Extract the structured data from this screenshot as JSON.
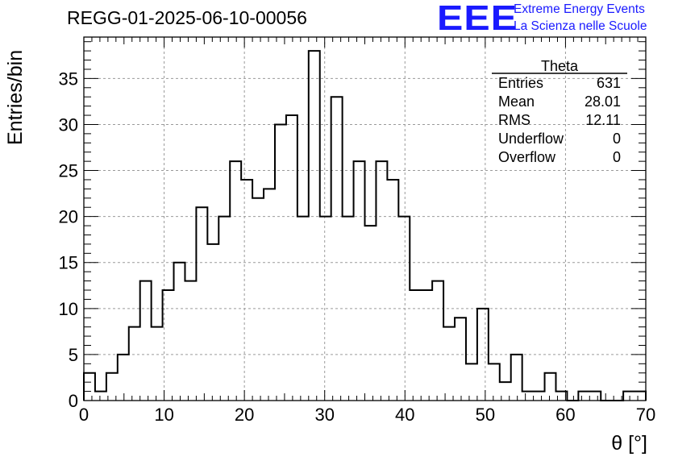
{
  "title": "REGG-01-2025-06-10-00056",
  "logo": {
    "text": "EEE",
    "line1": "Extreme Energy Events",
    "line2": "La Scienza nelle Scuole",
    "color": "#1a1aff"
  },
  "stats": {
    "name": "Theta",
    "rows": [
      {
        "label": "Entries",
        "value": "631"
      },
      {
        "label": "Mean",
        "value": "28.01"
      },
      {
        "label": "RMS",
        "value": "12.11"
      },
      {
        "label": "Underflow",
        "value": "0"
      },
      {
        "label": "Overflow",
        "value": "0"
      }
    ]
  },
  "chart_data": {
    "type": "bar",
    "title": "REGG-01-2025-06-10-00056",
    "xlabel": "θ [°]",
    "ylabel": "Entries/bin",
    "xlim": [
      0,
      70
    ],
    "ylim": [
      0,
      39.5
    ],
    "bin_width": 1.4,
    "values": [
      3,
      1,
      3,
      5,
      8,
      13,
      8,
      12,
      15,
      13,
      21,
      17,
      20,
      26,
      24,
      22,
      23,
      30,
      31,
      20,
      38,
      20,
      33,
      20,
      26,
      19,
      26,
      24,
      20,
      12,
      12,
      13,
      8,
      9,
      4,
      10,
      4,
      2,
      5,
      1,
      1,
      3,
      1,
      0,
      1,
      1,
      0,
      0,
      1,
      1
    ],
    "xticks": [
      0,
      10,
      20,
      30,
      40,
      50,
      60,
      70
    ],
    "yticks": [
      0,
      5,
      10,
      15,
      20,
      25,
      30,
      35
    ],
    "grid": true
  }
}
